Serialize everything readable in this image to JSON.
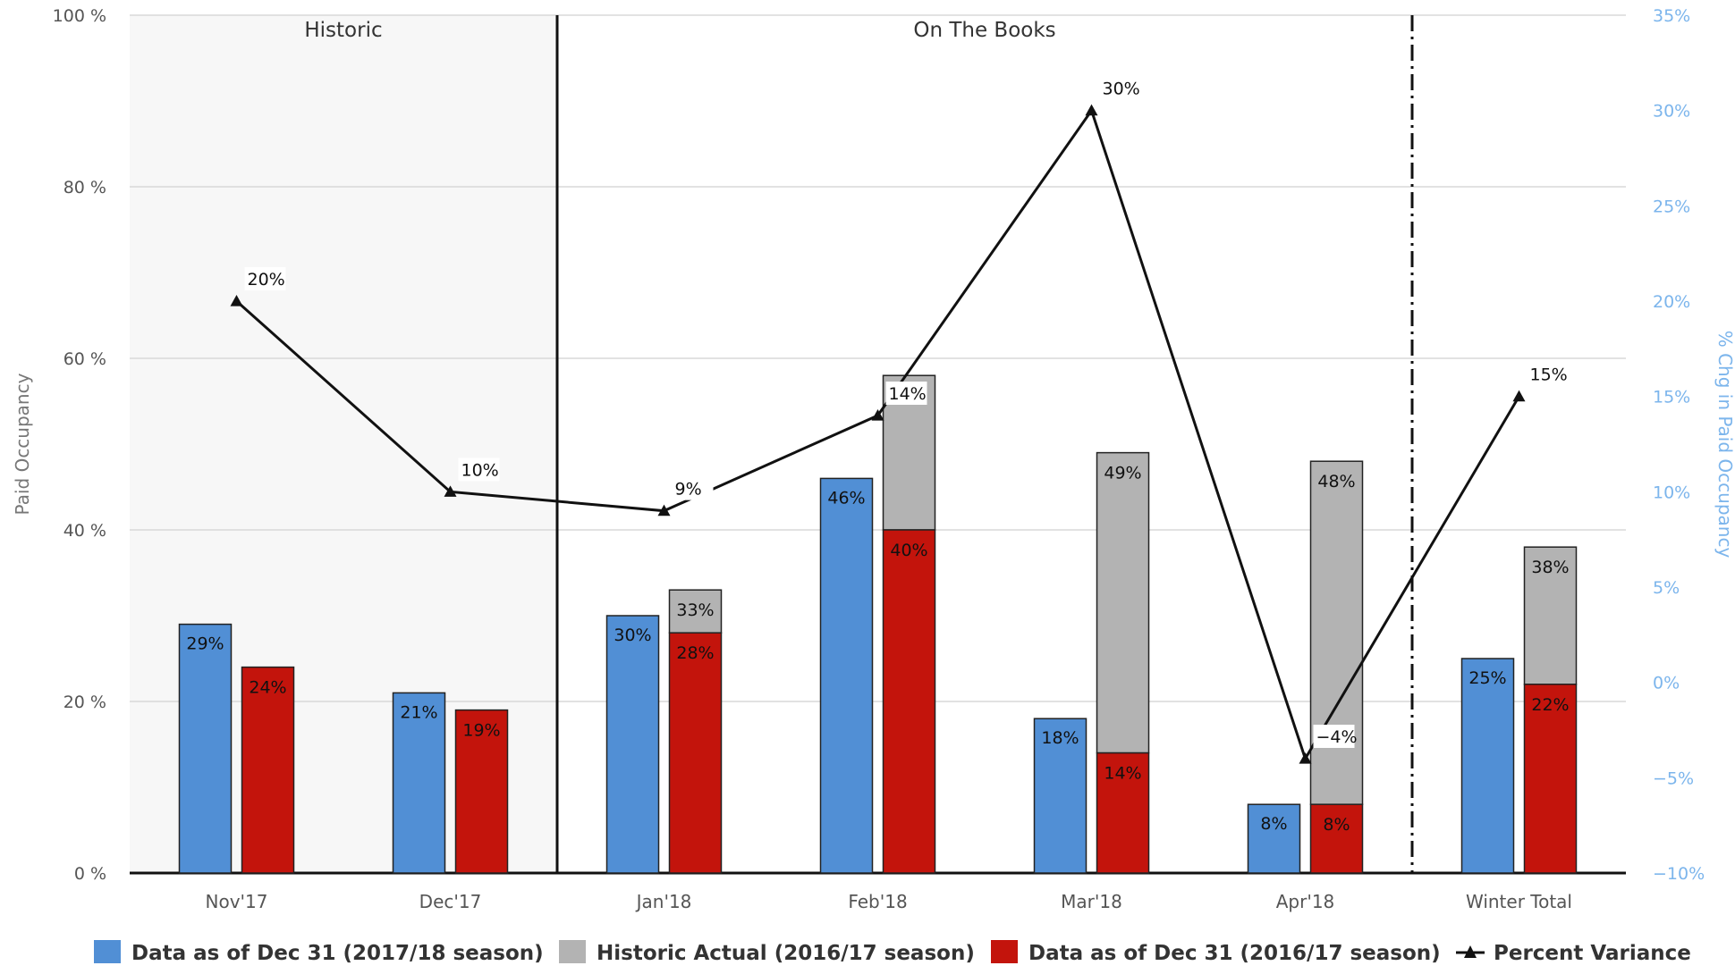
{
  "chart_data": {
    "type": "bar",
    "title": "",
    "categories": [
      "Nov'17",
      "Dec'17",
      "Jan'18",
      "Feb'18",
      "Mar'18",
      "Apr'18",
      "Winter Total"
    ],
    "bands": [
      {
        "label": "Historic",
        "from": 0,
        "to": 1
      },
      {
        "label": "On The Books",
        "from": 2,
        "to": 6
      }
    ],
    "y_left": {
      "label": "Paid Occupancy",
      "min": 0,
      "max": 100,
      "ticks": [
        0,
        20,
        40,
        60,
        80,
        100
      ],
      "tick_labels": [
        "0 %",
        "20 %",
        "40 %",
        "60 %",
        "80 %",
        "100 %"
      ]
    },
    "y_right": {
      "label": "% Chg in Paid Occupancy",
      "min": -10,
      "max": 35,
      "ticks": [
        -10,
        -5,
        0,
        5,
        10,
        15,
        20,
        25,
        30,
        35
      ],
      "tick_labels": [
        "−10%",
        "−5%",
        "0%",
        "5%",
        "10%",
        "15%",
        "20%",
        "25%",
        "30%",
        "35%"
      ]
    },
    "series": [
      {
        "name": "Data as of Dec 31 (2017/18 season)",
        "type": "column",
        "stack": "current",
        "color": "#518fd5",
        "values": [
          29,
          21,
          30,
          46,
          18,
          8,
          25
        ],
        "labels": [
          "29%",
          "21%",
          "30%",
          "46%",
          "18%",
          "8%",
          "25%"
        ]
      },
      {
        "name": "Historic Actual (2016/17 season)",
        "type": "column",
        "stack": "prior",
        "color": "#b3b3b3",
        "values": [
          null,
          null,
          33,
          58,
          49,
          48,
          38
        ],
        "labels": [
          "",
          "",
          "33%",
          "58%",
          "49%",
          "48%",
          "38%"
        ]
      },
      {
        "name": "Data as of Dec 31 (2016/17 season)",
        "type": "column",
        "stack": "prior",
        "color": "#c3140c",
        "values": [
          24,
          19,
          28,
          40,
          14,
          8,
          22
        ],
        "labels": [
          "24%",
          "19%",
          "28%",
          "40%",
          "14%",
          "8%",
          "22%"
        ]
      },
      {
        "name": "Percent Variance",
        "type": "line",
        "axis": "right",
        "color": "#111111",
        "values": [
          20,
          10,
          9,
          14,
          30,
          -4,
          15
        ],
        "labels": [
          "20%",
          "10%",
          "9%",
          "14%",
          "30%",
          "−4%",
          "15%"
        ]
      }
    ],
    "legend": "bottom",
    "grid": true
  }
}
